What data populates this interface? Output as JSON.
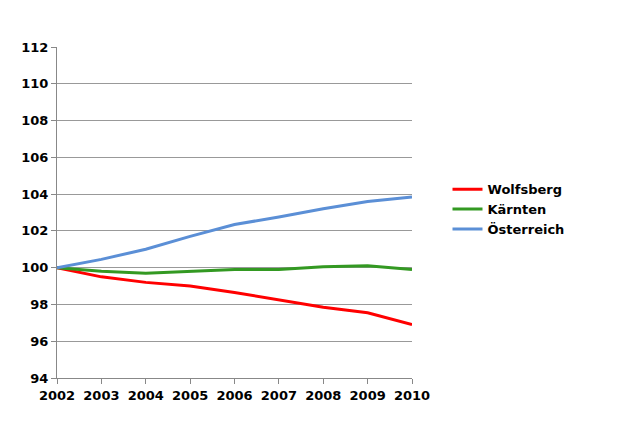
{
  "chart_data": {
    "type": "line",
    "x": [
      2002,
      2003,
      2004,
      2005,
      2006,
      2007,
      2008,
      2009,
      2010
    ],
    "series": [
      {
        "name": "Wolfsberg",
        "color": "#ff0000",
        "values": [
          100,
          99.5,
          99.2,
          99.0,
          98.65,
          98.25,
          97.85,
          97.55,
          96.9
        ]
      },
      {
        "name": "Kärnten",
        "color": "#339922",
        "values": [
          100,
          99.8,
          99.7,
          99.8,
          99.9,
          99.9,
          100.05,
          100.1,
          99.9
        ]
      },
      {
        "name": "Österreich",
        "color": "#5b8fd6",
        "values": [
          100,
          100.45,
          101.0,
          101.7,
          102.35,
          102.75,
          103.2,
          103.6,
          103.85
        ]
      }
    ],
    "xlim": [
      2002,
      2010
    ],
    "xticks": [
      2002,
      2003,
      2004,
      2005,
      2006,
      2007,
      2008,
      2009,
      2010
    ],
    "ylim": [
      94,
      112
    ],
    "yticks": [
      94,
      96,
      98,
      100,
      102,
      104,
      106,
      108,
      110,
      112
    ],
    "grid": true,
    "legend": "right"
  }
}
